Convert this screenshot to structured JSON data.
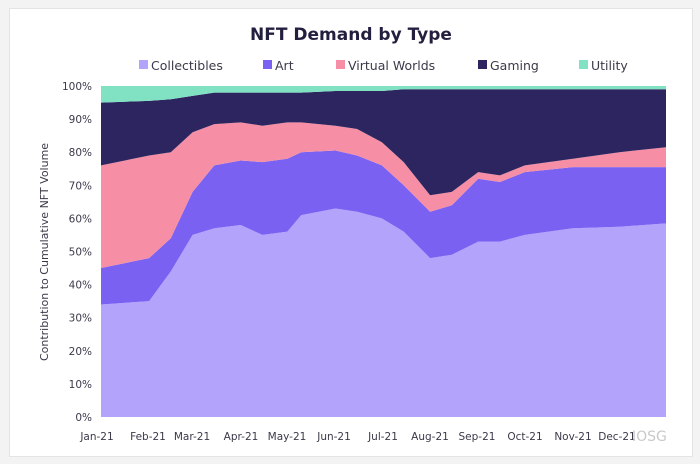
{
  "chart_data": {
    "type": "area",
    "stacked": true,
    "normalized_percent": true,
    "title": "NFT Demand by Type",
    "xlabel": "",
    "ylabel": "Contribution to Cumulative NFT Volume",
    "ylim": [
      0,
      100
    ],
    "yticks": [
      "0%",
      "10%",
      "20%",
      "30%",
      "40%",
      "50%",
      "60%",
      "70%",
      "80%",
      "90%",
      "100%"
    ],
    "xticks": [
      "Jan-21",
      "Feb-21",
      "Mar-21",
      "Apr-21",
      "May-21",
      "Jun-21",
      "Jul-21",
      "Aug-21",
      "Sep-21",
      "Oct-21",
      "Nov-21",
      "Dec-21"
    ],
    "legend_position": "top",
    "grid": false,
    "x": [
      "2021-01-01",
      "2021-02-01",
      "2021-02-15",
      "2021-03-01",
      "2021-03-15",
      "2021-04-01",
      "2021-04-15",
      "2021-05-01",
      "2021-05-10",
      "2021-06-01",
      "2021-06-15",
      "2021-07-01",
      "2021-07-15",
      "2021-08-01",
      "2021-08-15",
      "2021-09-01",
      "2021-09-15",
      "2021-10-01",
      "2021-11-01",
      "2021-12-01",
      "2021-12-31"
    ],
    "series": [
      {
        "name": "Collectibles",
        "color": "#b3a3fb",
        "values": [
          34,
          35,
          44,
          55,
          57,
          58,
          55,
          56,
          61,
          63,
          62,
          60,
          56,
          48,
          49,
          53,
          53,
          55,
          57,
          57.5,
          58.5
        ]
      },
      {
        "name": "Art",
        "color": "#7b61f2",
        "values": [
          11,
          13,
          10,
          13,
          19,
          19.5,
          22,
          22,
          19,
          17.5,
          17,
          16,
          14,
          14,
          15,
          19,
          18,
          19,
          18.5,
          18,
          17
        ]
      },
      {
        "name": "Virtual Worlds",
        "color": "#f68fa5",
        "values": [
          31,
          31,
          26,
          18,
          12.5,
          11.5,
          11,
          11,
          9,
          7.5,
          8,
          7,
          7,
          5,
          4,
          2,
          2,
          2,
          2.5,
          4.5,
          6
        ]
      },
      {
        "name": "Gaming",
        "color": "#2c2560",
        "values": [
          19,
          16.5,
          16,
          11,
          9.5,
          9,
          10,
          9,
          9,
          10.5,
          11.5,
          15.5,
          22,
          32,
          31,
          25,
          26,
          23,
          21,
          19,
          17.5
        ]
      },
      {
        "name": "Utility",
        "color": "#80e2c2",
        "values": [
          5,
          4.5,
          4,
          3,
          2,
          2,
          2,
          2,
          2,
          1.5,
          1.5,
          1.5,
          1,
          1,
          1,
          1,
          1,
          1,
          1,
          1,
          1
        ]
      }
    ]
  },
  "watermark": "IOSG"
}
